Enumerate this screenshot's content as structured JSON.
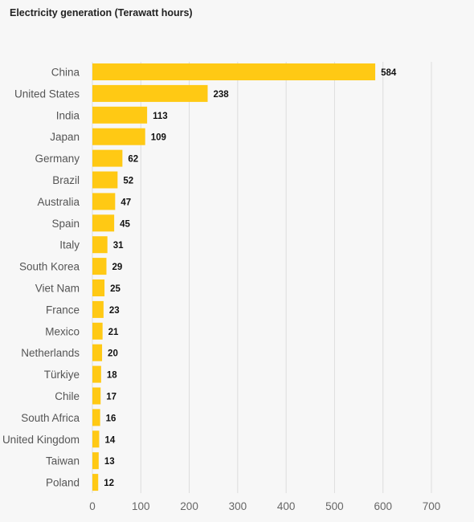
{
  "chart_data": {
    "type": "bar",
    "orientation": "horizontal",
    "title": "Electricity generation (Terawatt hours)",
    "categories": [
      "China",
      "United States",
      "India",
      "Japan",
      "Germany",
      "Brazil",
      "Australia",
      "Spain",
      "Italy",
      "South Korea",
      "Viet Nam",
      "France",
      "Mexico",
      "Netherlands",
      "Türkiye",
      "Chile",
      "South Africa",
      "United Kingdom",
      "Taiwan",
      "Poland"
    ],
    "values": [
      584,
      238,
      113,
      109,
      62,
      52,
      47,
      45,
      31,
      29,
      25,
      23,
      21,
      20,
      18,
      17,
      16,
      14,
      13,
      12
    ],
    "xlim": [
      0,
      700
    ],
    "xticks": [
      0,
      100,
      200,
      300,
      400,
      500,
      600,
      700
    ],
    "grid": true,
    "bar_color": "#FFC914"
  }
}
